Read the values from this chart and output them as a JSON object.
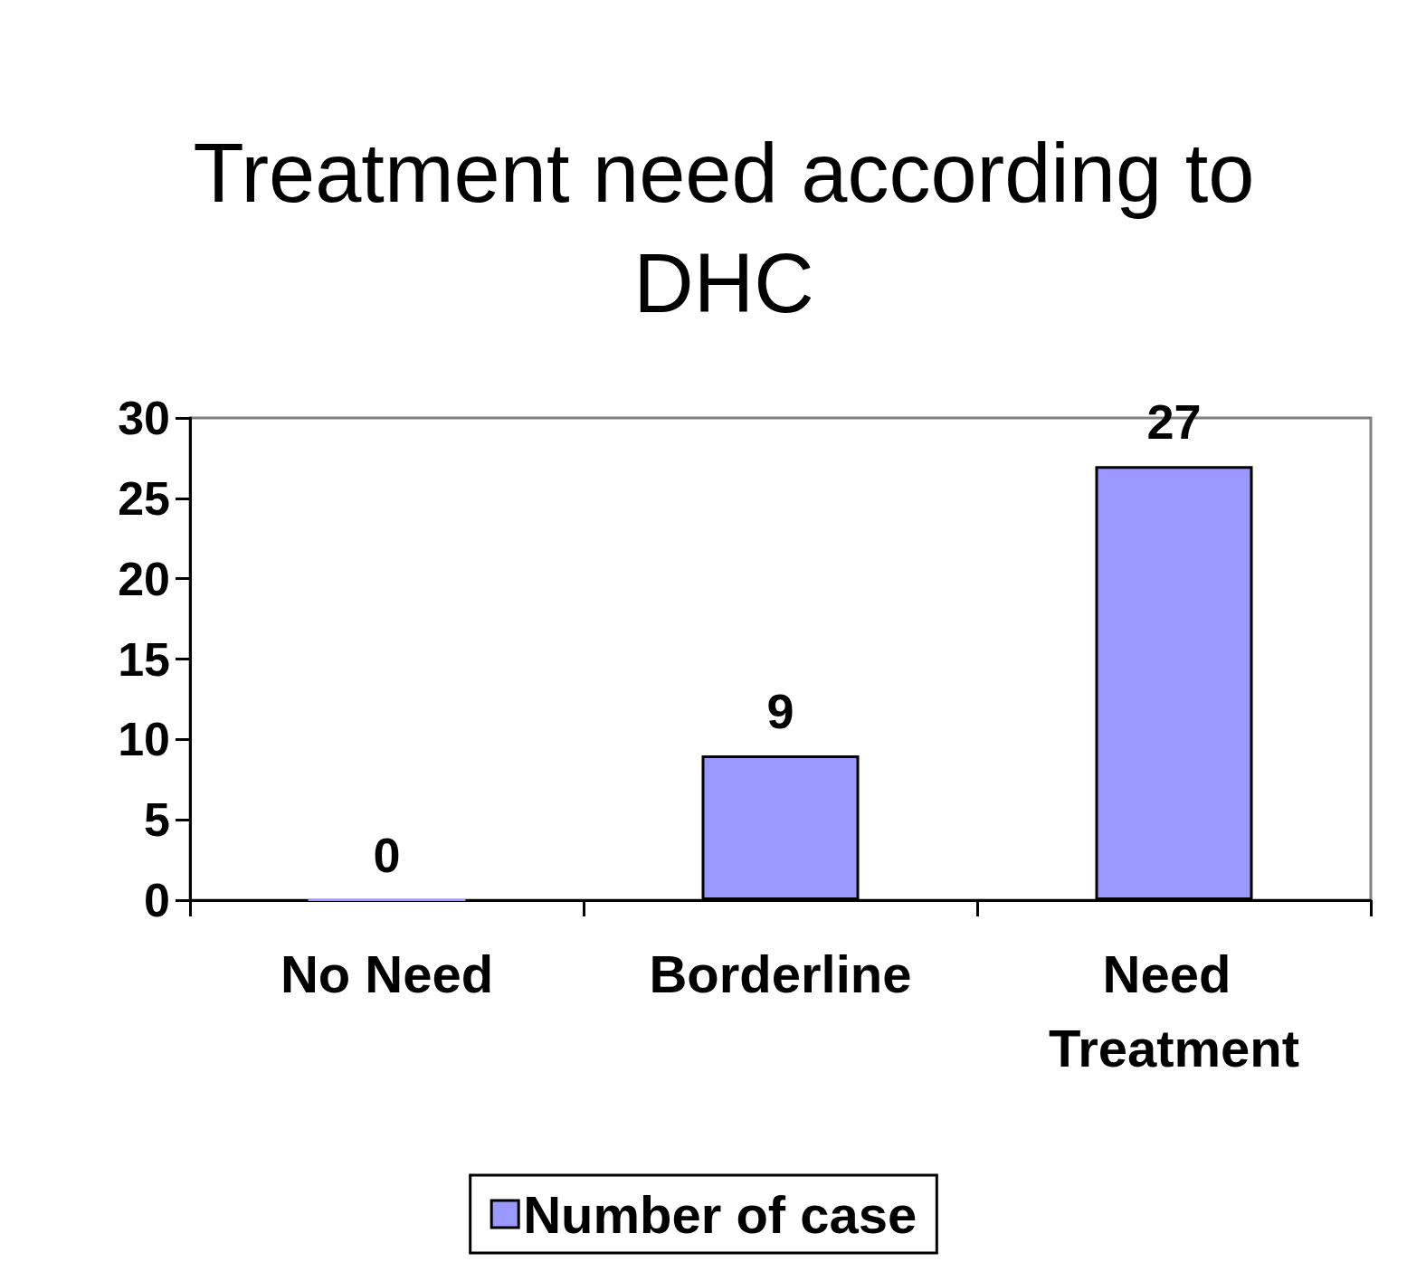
{
  "chart_data": {
    "type": "bar",
    "title": "Treatment need according to\nDHC",
    "categories": [
      "No Need",
      "Borderline",
      "Need Treatment"
    ],
    "series": [
      {
        "name": "Number of case",
        "color": "#9999ff",
        "values": [
          0,
          9,
          27
        ]
      }
    ],
    "ylim": [
      0,
      30
    ],
    "yticks": [
      0,
      5,
      10,
      15,
      20,
      25,
      30
    ],
    "data_labels": true,
    "legend": "bottom"
  }
}
